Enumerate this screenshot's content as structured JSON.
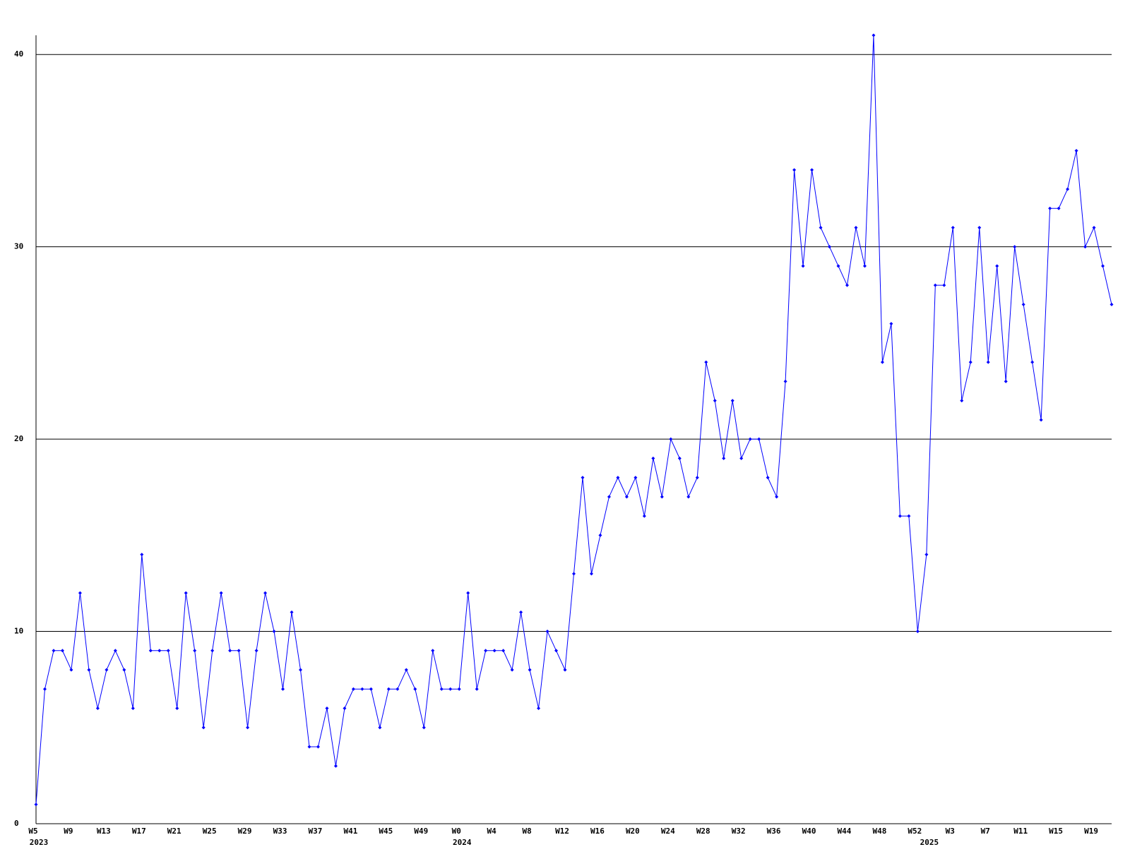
{
  "chart_data": {
    "type": "line",
    "categories": [
      "W5",
      null,
      null,
      null,
      "W9",
      null,
      null,
      null,
      "W13",
      null,
      null,
      null,
      "W17",
      null,
      null,
      null,
      "W21",
      null,
      null,
      null,
      "W25",
      null,
      null,
      null,
      "W29",
      null,
      null,
      null,
      "W33",
      null,
      null,
      null,
      "W37",
      null,
      null,
      null,
      "W41",
      null,
      null,
      null,
      "W45",
      null,
      null,
      null,
      "W49",
      null,
      null,
      null,
      "W0",
      null,
      null,
      null,
      "W4",
      null,
      null,
      null,
      "W8",
      null,
      null,
      null,
      "W12",
      null,
      null,
      null,
      "W16",
      null,
      null,
      null,
      "W20",
      null,
      null,
      null,
      "W24",
      null,
      null,
      null,
      "W28",
      null,
      null,
      null,
      "W32",
      null,
      null,
      null,
      "W36",
      null,
      null,
      null,
      "W40",
      null,
      null,
      null,
      "W44",
      null,
      null,
      null,
      "W48",
      null,
      null,
      null,
      "W52",
      null,
      null,
      null,
      "W3",
      null,
      null,
      null,
      "W7",
      null,
      null,
      null,
      "W11",
      null,
      null,
      null,
      "W15",
      null,
      null,
      null,
      "W19",
      null,
      null
    ],
    "category_years": [
      "2023",
      null,
      null,
      null,
      null,
      null,
      null,
      null,
      null,
      null,
      null,
      null,
      null,
      null,
      null,
      null,
      null,
      null,
      null,
      null,
      null,
      null,
      null,
      null,
      null,
      null,
      null,
      null,
      null,
      null,
      null,
      null,
      null,
      null,
      null,
      null,
      null,
      null,
      null,
      null,
      null,
      null,
      null,
      null,
      null,
      null,
      null,
      null,
      "2024",
      null,
      null,
      null,
      null,
      null,
      null,
      null,
      null,
      null,
      null,
      null,
      null,
      null,
      null,
      null,
      null,
      null,
      null,
      null,
      null,
      null,
      null,
      null,
      null,
      null,
      null,
      null,
      null,
      null,
      null,
      null,
      null,
      null,
      null,
      null,
      null,
      null,
      null,
      null,
      null,
      null,
      null,
      null,
      null,
      null,
      null,
      null,
      null,
      null,
      null,
      null,
      null,
      "2025",
      null,
      null,
      null,
      null,
      null,
      null,
      null,
      null,
      null,
      null,
      null,
      null,
      null,
      null,
      null,
      null,
      null,
      null,
      null,
      null,
      null
    ],
    "series": [
      {
        "color": "#0000ff",
        "values": [
          1,
          7,
          9,
          9,
          8,
          12,
          8,
          6,
          8,
          9,
          8,
          6,
          14,
          9,
          9,
          9,
          6,
          12,
          9,
          5,
          9,
          12,
          9,
          9,
          5,
          9,
          12,
          10,
          7,
          11,
          8,
          4,
          4,
          6,
          3,
          6,
          7,
          7,
          7,
          5,
          7,
          7,
          8,
          7,
          5,
          9,
          7,
          7,
          7,
          12,
          7,
          9,
          9,
          9,
          8,
          11,
          8,
          6,
          10,
          9,
          8,
          13,
          18,
          13,
          15,
          17,
          18,
          17,
          18,
          16,
          19,
          17,
          20,
          19,
          17,
          18,
          24,
          22,
          19,
          22,
          19,
          20,
          20,
          18,
          17,
          23,
          34,
          29,
          34,
          31,
          30,
          29,
          28,
          31,
          29,
          41,
          24,
          26,
          16,
          16,
          10,
          14,
          28,
          28,
          31,
          22,
          24,
          31,
          24,
          29,
          23,
          30,
          27,
          24,
          21,
          32,
          32,
          33,
          35,
          30,
          31,
          29,
          27
        ]
      }
    ],
    "ylim": [
      0,
      41
    ],
    "yticks": [
      0,
      10,
      20,
      30,
      40
    ],
    "grid": true
  }
}
